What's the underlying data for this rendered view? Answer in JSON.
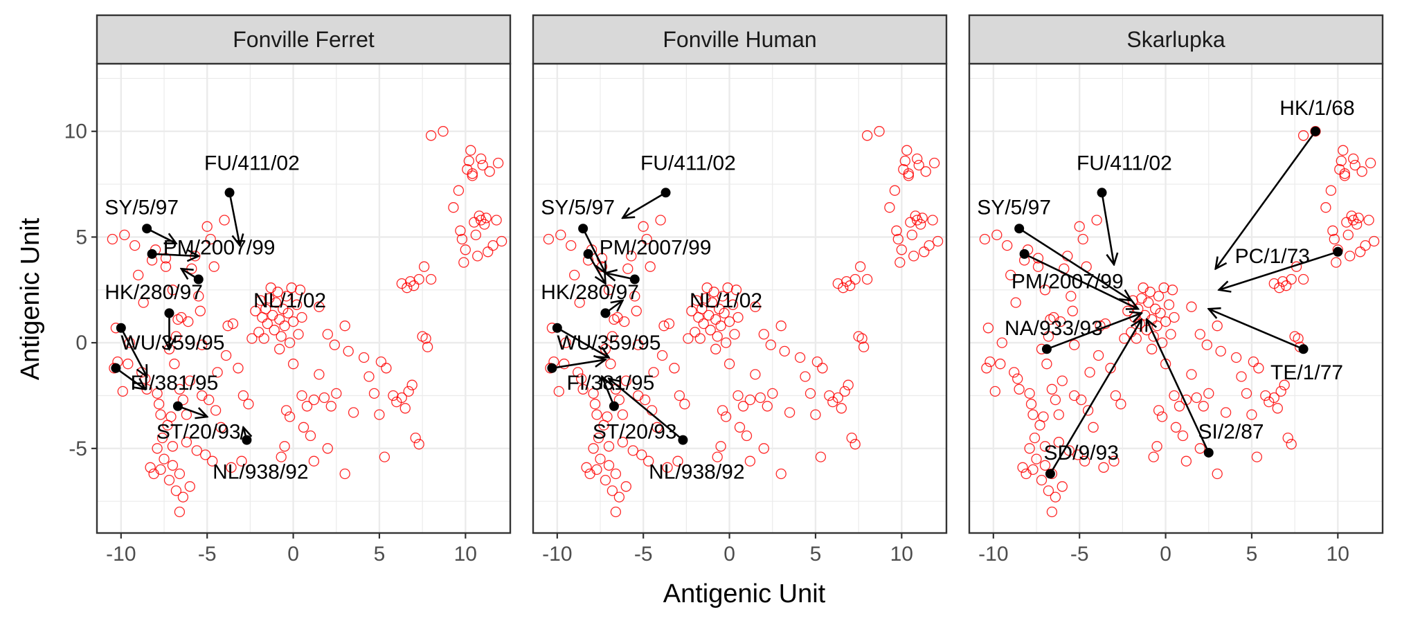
{
  "xlabel": "Antigenic Unit",
  "ylabel": "Antigenic Unit",
  "colors": {
    "points": "#ff0000",
    "arrows": "#000000",
    "strip_bg": "#d9d9d9",
    "grid": "#ebebeb",
    "border": "#333333"
  },
  "chart_data": {
    "type": "scatter",
    "facets": [
      "Fonville Ferret",
      "Fonville Human",
      "Skarlupka"
    ],
    "xlim": [
      -11.4,
      12.6
    ],
    "ylim": [
      -9.0,
      13.2
    ],
    "x_ticks": [
      "-10",
      "-5",
      "0",
      "5",
      "10"
    ],
    "y_ticks": [
      "10",
      "5",
      "0",
      "-5"
    ],
    "grid": true,
    "background_points": [
      [
        -10.5,
        4.9
      ],
      [
        -10.3,
        0.7
      ],
      [
        -10.2,
        -0.9
      ],
      [
        -10.4,
        -1.2
      ],
      [
        -9.8,
        5.1
      ],
      [
        -9.9,
        -2.3
      ],
      [
        -9.6,
        -1.0
      ],
      [
        -9.5,
        0.0
      ],
      [
        -9.2,
        4.6
      ],
      [
        -9.0,
        3.2
      ],
      [
        -8.8,
        -1.4
      ],
      [
        -8.6,
        -1.7
      ],
      [
        -8.5,
        -2.2
      ],
      [
        -8.7,
        1.9
      ],
      [
        -8.2,
        3.9
      ],
      [
        -8.0,
        4.4
      ],
      [
        -7.9,
        -2.4
      ],
      [
        -7.8,
        -2.9
      ],
      [
        -7.7,
        -3.4
      ],
      [
        -7.6,
        -4.5
      ],
      [
        -7.4,
        4.0
      ],
      [
        -7.2,
        -0.3
      ],
      [
        -7.4,
        3.6
      ],
      [
        -7.0,
        2.5
      ],
      [
        -7.1,
        -3.5
      ],
      [
        -7.3,
        -3.9
      ],
      [
        -7.0,
        -4.9
      ],
      [
        -6.8,
        0.3
      ],
      [
        -6.9,
        -1.0
      ],
      [
        -6.7,
        1.1
      ],
      [
        -6.5,
        1.2
      ],
      [
        -6.6,
        -2.2
      ],
      [
        -6.4,
        -2.7
      ],
      [
        -6.2,
        -3.4
      ],
      [
        -6.0,
        -1.8
      ],
      [
        -6.1,
        1.0
      ],
      [
        -5.9,
        3.5
      ],
      [
        -5.7,
        4.1
      ],
      [
        -5.5,
        2.2
      ],
      [
        -5.4,
        1.5
      ],
      [
        -5.3,
        -0.1
      ],
      [
        -5.0,
        5.5
      ],
      [
        -4.8,
        4.9
      ],
      [
        -4.6,
        3.6
      ],
      [
        -4.9,
        -2.7
      ],
      [
        -4.5,
        -3.2
      ],
      [
        -4.2,
        -4.0
      ],
      [
        -4.0,
        5.8
      ],
      [
        -3.8,
        0.8
      ],
      [
        -3.5,
        0.9
      ],
      [
        -3.2,
        -1.2
      ],
      [
        -2.9,
        -2.5
      ],
      [
        -7.5,
        -5.5
      ],
      [
        -7.0,
        -5.8
      ],
      [
        -6.6,
        -6.2
      ],
      [
        -7.2,
        -6.5
      ],
      [
        -6.8,
        -7.0
      ],
      [
        -6.4,
        -7.3
      ],
      [
        -7.9,
        -5.0
      ],
      [
        -8.3,
        -5.9
      ],
      [
        -6.2,
        -4.7
      ],
      [
        -5.6,
        -5.1
      ],
      [
        -5.1,
        -5.3
      ],
      [
        -4.7,
        -5.6
      ],
      [
        -6.6,
        -8.0
      ],
      [
        -7.7,
        -6.0
      ],
      [
        -8.1,
        -6.2
      ],
      [
        -6.0,
        -6.8
      ],
      [
        -5.3,
        -2.5
      ],
      [
        -4.4,
        -1.4
      ],
      [
        -3.9,
        -0.6
      ],
      [
        -2.6,
        -2.9
      ],
      [
        -3.0,
        -5.6
      ],
      [
        -3.6,
        -5.9
      ],
      [
        -2.0,
        0.5
      ],
      [
        -1.8,
        1.2
      ],
      [
        -1.6,
        1.6
      ],
      [
        -1.5,
        0.9
      ],
      [
        -1.4,
        2.1
      ],
      [
        -1.2,
        1.3
      ],
      [
        -1.1,
        0.6
      ],
      [
        -1.0,
        1.9
      ],
      [
        -0.9,
        2.4
      ],
      [
        -0.8,
        1.1
      ],
      [
        -0.7,
        0.3
      ],
      [
        -0.6,
        1.6
      ],
      [
        -0.5,
        0.8
      ],
      [
        -0.4,
        2.2
      ],
      [
        -0.3,
        1.4
      ],
      [
        -0.2,
        0.0
      ],
      [
        -0.1,
        2.6
      ],
      [
        0.0,
        1.0
      ],
      [
        0.2,
        1.8
      ],
      [
        0.3,
        0.4
      ],
      [
        0.4,
        2.5
      ],
      [
        0.5,
        1.2
      ],
      [
        -2.4,
        0.2
      ],
      [
        -2.2,
        1.5
      ],
      [
        -1.9,
        2.0
      ],
      [
        -1.7,
        0.2
      ],
      [
        -1.3,
        2.6
      ],
      [
        -0.8,
        -0.3
      ],
      [
        1.5,
        1.7
      ],
      [
        2.0,
        0.4
      ],
      [
        2.4,
        -0.1
      ],
      [
        3.0,
        0.8
      ],
      [
        3.2,
        -0.4
      ],
      [
        -0.2,
        -3.5
      ],
      [
        -0.4,
        -3.2
      ],
      [
        0.0,
        -1.0
      ],
      [
        0.5,
        -2.5
      ],
      [
        0.8,
        -3.0
      ],
      [
        1.0,
        -4.4
      ],
      [
        1.2,
        -2.7
      ],
      [
        1.5,
        -1.5
      ],
      [
        1.8,
        -2.6
      ],
      [
        2.2,
        -3.0
      ],
      [
        2.5,
        -2.4
      ],
      [
        2.0,
        -5.0
      ],
      [
        1.2,
        -5.6
      ],
      [
        0.6,
        -4.0
      ],
      [
        -0.5,
        -4.9
      ],
      [
        -0.7,
        -5.4
      ],
      [
        3.0,
        -6.2
      ],
      [
        3.5,
        -3.3
      ],
      [
        4.1,
        -0.7
      ],
      [
        4.4,
        -1.6
      ],
      [
        4.7,
        -2.4
      ],
      [
        5.0,
        -3.4
      ],
      [
        5.3,
        -5.4
      ],
      [
        5.1,
        -0.9
      ],
      [
        5.4,
        -1.2
      ],
      [
        5.8,
        -2.5
      ],
      [
        6.0,
        -2.8
      ],
      [
        6.3,
        -2.6
      ],
      [
        6.5,
        -3.1
      ],
      [
        6.7,
        -2.3
      ],
      [
        6.9,
        -2.0
      ],
      [
        7.1,
        -4.5
      ],
      [
        7.3,
        -4.8
      ],
      [
        6.3,
        2.8
      ],
      [
        6.6,
        2.6
      ],
      [
        6.8,
        2.9
      ],
      [
        7.0,
        2.7
      ],
      [
        7.3,
        3.0
      ],
      [
        7.6,
        3.6
      ],
      [
        8.0,
        3.0
      ],
      [
        7.5,
        0.3
      ],
      [
        7.7,
        0.2
      ],
      [
        7.8,
        -0.2
      ],
      [
        8.0,
        9.8
      ],
      [
        8.7,
        10.0
      ],
      [
        9.3,
        6.4
      ],
      [
        9.6,
        7.2
      ],
      [
        9.7,
        5.3
      ],
      [
        9.8,
        4.9
      ],
      [
        9.9,
        3.8
      ],
      [
        10.0,
        4.4
      ],
      [
        10.1,
        8.2
      ],
      [
        10.2,
        8.6
      ],
      [
        10.3,
        9.1
      ],
      [
        10.4,
        7.9
      ],
      [
        10.5,
        5.7
      ],
      [
        10.6,
        5.1
      ],
      [
        10.7,
        4.1
      ],
      [
        10.8,
        6.0
      ],
      [
        10.9,
        5.8
      ],
      [
        11.0,
        8.4
      ],
      [
        11.1,
        5.6
      ],
      [
        11.2,
        5.9
      ],
      [
        11.4,
        8.1
      ],
      [
        11.6,
        4.6
      ],
      [
        11.8,
        5.8
      ],
      [
        11.9,
        8.5
      ],
      [
        12.1,
        4.8
      ],
      [
        10.4,
        8.0
      ],
      [
        10.9,
        8.7
      ],
      [
        11.3,
        4.3
      ]
    ],
    "panels": [
      {
        "name": "Fonville Ferret",
        "arrows": [
          {
            "label": "FU/411/02",
            "from": [
              -3.7,
              7.1
            ],
            "to": [
              -3.1,
              4.6
            ],
            "label_pos": [
              -2.4,
              8.5
            ]
          },
          {
            "label": "SY/5/97",
            "from": [
              -8.5,
              5.4
            ],
            "to": [
              -6.8,
              4.7
            ],
            "label_pos": [
              -8.8,
              6.4
            ]
          },
          {
            "label": "PM/2007/99",
            "from": [
              -8.2,
              4.2
            ],
            "to": [
              -5.5,
              4.1
            ],
            "label_pos": [
              -4.3,
              4.5
            ]
          },
          {
            "label": "HK/280/97",
            "from": [
              -7.2,
              1.4
            ],
            "to": [
              -7.2,
              -0.3
            ],
            "label_pos": [
              -8.1,
              2.4
            ]
          },
          {
            "label": "NL/1/02",
            "from": [
              -5.5,
              3.0
            ],
            "to": [
              -6.5,
              3.5
            ],
            "label_pos": [
              -0.2,
              2.0
            ]
          },
          {
            "label": "WU/359/95",
            "from": [
              -10.0,
              0.7
            ],
            "to": [
              -8.5,
              -1.6
            ],
            "label_pos": [
              -7.0,
              0.0
            ]
          },
          {
            "label": "FI/381/95",
            "from": [
              -10.3,
              -1.2
            ],
            "to": [
              -8.6,
              -2.2
            ],
            "label_pos": [
              -6.9,
              -1.9
            ]
          },
          {
            "label": "ST/20/93",
            "from": [
              -6.7,
              -3.0
            ],
            "to": [
              -5.0,
              -3.5
            ],
            "label_pos": [
              -5.5,
              -4.2
            ]
          },
          {
            "label": "NL/938/92",
            "from": [
              -2.7,
              -4.6
            ],
            "to": [
              -2.9,
              -4.0
            ],
            "label_pos": [
              -1.9,
              -6.1
            ]
          }
        ]
      },
      {
        "name": "Fonville Human",
        "arrows": [
          {
            "label": "FU/411/02",
            "from": [
              -3.7,
              7.1
            ],
            "to": [
              -6.2,
              5.9
            ],
            "label_pos": [
              -2.4,
              8.5
            ]
          },
          {
            "label": "SY/5/97",
            "from": [
              -8.5,
              5.4
            ],
            "to": [
              -7.2,
              3.3
            ],
            "label_pos": [
              -8.8,
              6.4
            ]
          },
          {
            "label": "PM/2007/99",
            "from": [
              -8.2,
              4.2
            ],
            "to": [
              -7.2,
              2.8
            ],
            "label_pos": [
              -4.3,
              4.5
            ]
          },
          {
            "label": "HK/280/97",
            "from": [
              -7.2,
              1.4
            ],
            "to": [
              -6.2,
              2.0
            ],
            "label_pos": [
              -8.1,
              2.4
            ]
          },
          {
            "label": "NL/1/02",
            "from": [
              -5.5,
              3.0
            ],
            "to": [
              -7.2,
              3.3
            ],
            "label_pos": [
              -0.2,
              2.0
            ]
          },
          {
            "label": "WU/359/95",
            "from": [
              -10.0,
              0.7
            ],
            "to": [
              -7.0,
              -0.7
            ],
            "label_pos": [
              -7.0,
              0.0
            ]
          },
          {
            "label": "FI/381/95",
            "from": [
              -10.3,
              -1.2
            ],
            "to": [
              -7.2,
              -0.8
            ],
            "label_pos": [
              -6.9,
              -1.9
            ]
          },
          {
            "label": "ST/20/93",
            "from": [
              -6.7,
              -3.0
            ],
            "to": [
              -7.4,
              -1.6
            ],
            "label_pos": [
              -5.5,
              -4.2
            ]
          },
          {
            "label": "NL/938/92",
            "from": [
              -2.7,
              -4.6
            ],
            "to": [
              -7.0,
              -1.7
            ],
            "label_pos": [
              -1.9,
              -6.1
            ]
          }
        ]
      },
      {
        "name": "Skarlupka",
        "arrows": [
          {
            "label": "HK/1/68",
            "from": [
              8.7,
              10.0
            ],
            "to": [
              2.9,
              3.5
            ],
            "label_pos": [
              8.8,
              11.1
            ]
          },
          {
            "label": "FU/411/02",
            "from": [
              -3.7,
              7.1
            ],
            "to": [
              -3.0,
              3.7
            ],
            "label_pos": [
              -2.4,
              8.5
            ]
          },
          {
            "label": "SY/5/97",
            "from": [
              -8.5,
              5.4
            ],
            "to": [
              -2.0,
              2.0
            ],
            "label_pos": [
              -8.8,
              6.4
            ]
          },
          {
            "label": "PC/1/73",
            "from": [
              10.0,
              4.3
            ],
            "to": [
              3.1,
              2.5
            ],
            "label_pos": [
              6.2,
              4.1
            ]
          },
          {
            "label": "PM/2007/99",
            "from": [
              -8.2,
              4.2
            ],
            "to": [
              -1.6,
              1.6
            ],
            "label_pos": [
              -5.7,
              2.9
            ]
          },
          {
            "label": "NA/933/93",
            "from": [
              -6.9,
              -0.3
            ],
            "to": [
              -1.4,
              1.4
            ],
            "label_pos": [
              -6.5,
              0.7
            ]
          },
          {
            "label": "TE/1/77",
            "from": [
              8.0,
              -0.3
            ],
            "to": [
              2.5,
              1.6
            ],
            "label_pos": [
              8.2,
              -1.4
            ]
          },
          {
            "label": "SD/9/93",
            "from": [
              -6.7,
              -6.2
            ],
            "to": [
              -1.4,
              1.1
            ],
            "label_pos": [
              -4.9,
              -5.2
            ]
          },
          {
            "label": "SI/2/87",
            "from": [
              2.5,
              -5.2
            ],
            "to": [
              -1.1,
              1.1
            ],
            "label_pos": [
              3.8,
              -4.2
            ]
          }
        ]
      }
    ]
  }
}
